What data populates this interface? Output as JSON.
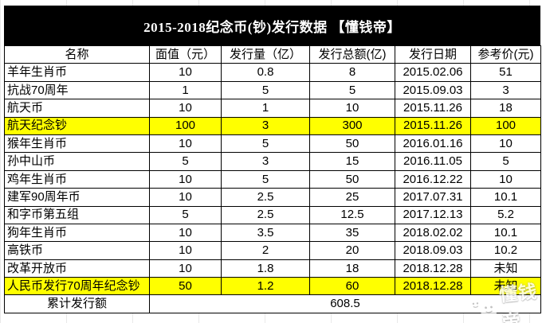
{
  "title": "2015-2018纪念币(钞)发行数据 【懂钱帝】",
  "chart_data": {
    "type": "table",
    "title": "2015-2018纪念币(钞)发行数据 【懂钱帝】",
    "columns": [
      "名称",
      "面值（元）",
      "发行量（亿）",
      "发行总额(亿)",
      "发行日期",
      "参考价(元)"
    ],
    "rows": [
      {
        "name": "羊年生肖币",
        "face_value": "10",
        "volume": "0.8",
        "total": "8",
        "date": "2015.02.06",
        "ref_price": "51",
        "highlight": false
      },
      {
        "name": "抗战70周年",
        "face_value": "1",
        "volume": "5",
        "total": "5",
        "date": "2015.09.03",
        "ref_price": "3",
        "highlight": false
      },
      {
        "name": "航天币",
        "face_value": "10",
        "volume": "1",
        "total": "10",
        "date": "2015.11.26",
        "ref_price": "18",
        "highlight": false
      },
      {
        "name": "航天纪念钞",
        "face_value": "100",
        "volume": "3",
        "total": "300",
        "date": "2015.11.26",
        "ref_price": "100",
        "highlight": true
      },
      {
        "name": "猴年生肖币",
        "face_value": "10",
        "volume": "5",
        "total": "50",
        "date": "2016.01.16",
        "ref_price": "10",
        "highlight": false
      },
      {
        "name": "孙中山币",
        "face_value": "5",
        "volume": "3",
        "total": "15",
        "date": "2016.11.05",
        "ref_price": "5",
        "highlight": false
      },
      {
        "name": "鸡年生肖币",
        "face_value": "10",
        "volume": "5",
        "total": "50",
        "date": "2016.12.22",
        "ref_price": "10",
        "highlight": false
      },
      {
        "name": "建军90周年币",
        "face_value": "10",
        "volume": "2.5",
        "total": "25",
        "date": "2017.07.31",
        "ref_price": "10.1",
        "highlight": false
      },
      {
        "name": "和字币第五组",
        "face_value": "5",
        "volume": "2.5",
        "total": "12.5",
        "date": "2017.12.13",
        "ref_price": "5.2",
        "highlight": false
      },
      {
        "name": "狗年生肖币",
        "face_value": "10",
        "volume": "3.5",
        "total": "35",
        "date": "2018.02.02",
        "ref_price": "10.1",
        "highlight": false
      },
      {
        "name": "高铁币",
        "face_value": "10",
        "volume": "2",
        "total": "20",
        "date": "2018.09.03",
        "ref_price": "10.2",
        "highlight": false
      },
      {
        "name": "改革开放币",
        "face_value": "10",
        "volume": "1.8",
        "total": "18",
        "date": "2018.12.28",
        "ref_price": "未知",
        "highlight": false
      },
      {
        "name": "人民币发行70周年纪念钞",
        "face_value": "50",
        "volume": "1.2",
        "total": "60",
        "date": "2018.12.28",
        "ref_price": "未知",
        "highlight": true
      }
    ],
    "footer": {
      "label": "累计发行额",
      "value": "608.5"
    }
  },
  "watermark": {
    "text": "懂钱帝"
  },
  "colors": {
    "title_bg": "#000000",
    "title_text": "#ffffff",
    "highlight": "#ffff00",
    "border": "#000000",
    "watermark_text": "#ffffff"
  }
}
